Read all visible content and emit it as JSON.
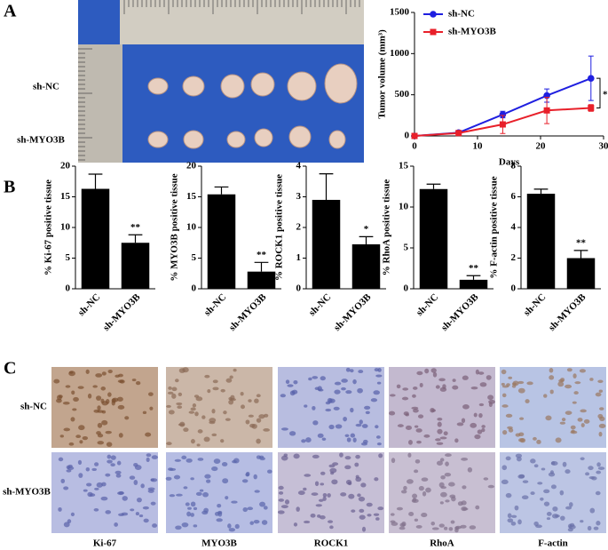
{
  "panel_labels": [
    "A",
    "B",
    "C"
  ],
  "photo": {
    "row_labels": [
      "sh-NC",
      "sh-MYO3B"
    ]
  },
  "ihc": {
    "row_labels": [
      "sh-NC",
      "sh-MYO3B"
    ],
    "column_labels": [
      "Ki-67",
      "MYO3B",
      "ROCK1",
      "RhoA",
      "F-actin"
    ]
  },
  "chart_data": [
    {
      "type": "line",
      "xlabel": "Days",
      "ylabel": "Tumor volume (mm³)",
      "x": [
        0,
        7,
        14,
        21,
        28
      ],
      "xlim": [
        0,
        30
      ],
      "xticks": [
        0,
        10,
        20,
        30
      ],
      "ylim": [
        0,
        1500
      ],
      "yticks": [
        0,
        500,
        1000,
        1500
      ],
      "legend": "upper left",
      "annotation": "*",
      "series": [
        {
          "name": "sh-NC",
          "color": "#1f1fe0",
          "marker": "circle",
          "values": [
            0,
            40,
            260,
            490,
            700
          ],
          "errors": [
            0,
            10,
            40,
            80,
            270
          ]
        },
        {
          "name": "sh-MYO3B",
          "color": "#e8202a",
          "marker": "square",
          "values": [
            0,
            35,
            140,
            310,
            340
          ],
          "errors": [
            0,
            10,
            110,
            160,
            40
          ]
        }
      ]
    },
    {
      "type": "bar",
      "ylabel": "% Ki-67 positive tissue",
      "categories": [
        "sh-NC",
        "sh-MYO3B"
      ],
      "values": [
        16.3,
        7.5
      ],
      "errors": [
        2.4,
        1.3
      ],
      "color": "#000000",
      "ylim": [
        0,
        20
      ],
      "yticks": [
        0,
        5,
        10,
        15,
        20
      ],
      "annotation": "**"
    },
    {
      "type": "bar",
      "ylabel": "% MYO3B positive tissue",
      "categories": [
        "sh-NC",
        "sh-MYO3B"
      ],
      "values": [
        15.4,
        2.8
      ],
      "errors": [
        1.2,
        1.5
      ],
      "color": "#000000",
      "ylim": [
        0,
        20
      ],
      "yticks": [
        0,
        5,
        10,
        15,
        20
      ],
      "annotation": "**"
    },
    {
      "type": "bar",
      "ylabel": "% ROCK1 positive tissue",
      "categories": [
        "sh-NC",
        "sh-MYO3B"
      ],
      "values": [
        2.9,
        1.45
      ],
      "errors": [
        0.85,
        0.25
      ],
      "color": "#000000",
      "ylim": [
        0,
        4
      ],
      "yticks": [
        0,
        1,
        2,
        3,
        4
      ],
      "annotation": "*"
    },
    {
      "type": "bar",
      "ylabel": "% RhoA positive tissue",
      "categories": [
        "sh-NC",
        "sh-MYO3B"
      ],
      "values": [
        12.2,
        1.1
      ],
      "errors": [
        0.6,
        0.5
      ],
      "color": "#000000",
      "ylim": [
        0,
        15
      ],
      "yticks": [
        0,
        5,
        10,
        15
      ],
      "annotation": "**"
    },
    {
      "type": "bar",
      "ylabel": "% F-actin positive tissue",
      "categories": [
        "sh-NC",
        "sh-MYO3B"
      ],
      "values": [
        6.2,
        2.0
      ],
      "errors": [
        0.3,
        0.5
      ],
      "color": "#000000",
      "ylim": [
        0,
        8
      ],
      "yticks": [
        0,
        2,
        4,
        6,
        8
      ],
      "annotation": "**"
    }
  ]
}
